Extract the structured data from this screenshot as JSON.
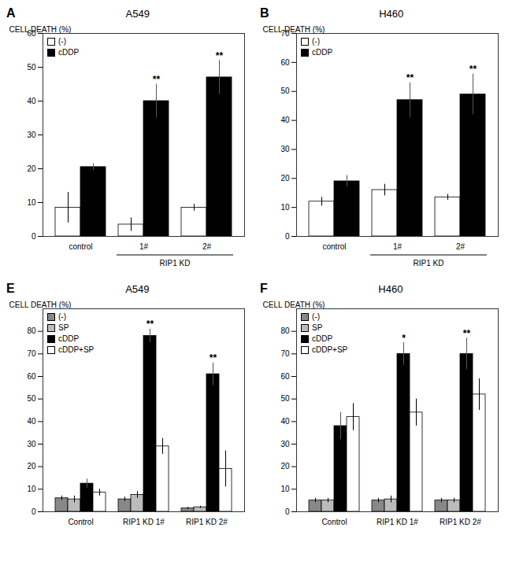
{
  "chart_data": [
    {
      "type": "bar",
      "title": "A549",
      "categories": [
        "control",
        "1#",
        "2#"
      ],
      "series": [
        {
          "name": "(-)",
          "color": "#ffffff",
          "values": [
            8.5,
            3.5,
            8.5
          ],
          "errors": [
            4.5,
            2.0,
            1.0
          ]
        },
        {
          "name": "cDDP",
          "color": "#000000",
          "values": [
            20.5,
            40.0,
            47.0
          ],
          "errors": [
            1.0,
            5.0,
            5.0
          ]
        }
      ],
      "ylabel": "CELL DEATH (%)",
      "ylim": [
        0,
        60
      ],
      "yticks": [
        0,
        10,
        20,
        30,
        40,
        50,
        60
      ],
      "legend": "upper left",
      "annotations": [
        {
          "text": "A"
        },
        {
          "text": "**",
          "category": "1#",
          "series": "cDDP"
        },
        {
          "text": "**",
          "category": "2#",
          "series": "cDDP"
        },
        {
          "text": "RIP1 KD",
          "categories": [
            "1#",
            "2#"
          ]
        }
      ]
    },
    {
      "type": "bar",
      "title": "H460",
      "categories": [
        "control",
        "1#",
        "2#"
      ],
      "series": [
        {
          "name": "(-)",
          "color": "#ffffff",
          "values": [
            12.0,
            16.0,
            13.5
          ],
          "errors": [
            1.5,
            2.0,
            1.0
          ]
        },
        {
          "name": "cDDP",
          "color": "#000000",
          "values": [
            19.0,
            47.0,
            49.0
          ],
          "errors": [
            2.0,
            6.0,
            7.0
          ]
        }
      ],
      "ylabel": "CELL DEATH (%)",
      "ylim": [
        0,
        70
      ],
      "yticks": [
        0,
        10,
        20,
        30,
        40,
        50,
        60,
        70
      ],
      "legend": "upper left",
      "annotations": [
        {
          "text": "B"
        },
        {
          "text": "**",
          "category": "1#",
          "series": "cDDP"
        },
        {
          "text": "**",
          "category": "2#",
          "series": "cDDP"
        },
        {
          "text": "RIP1 KD",
          "categories": [
            "1#",
            "2#"
          ]
        }
      ]
    },
    {
      "type": "bar",
      "title": "A549",
      "categories": [
        "Control",
        "RIP1 KD 1#",
        "RIP1 KD 2#"
      ],
      "series": [
        {
          "name": "(-)",
          "color": "#888888",
          "values": [
            6.0,
            5.5,
            1.5
          ],
          "errors": [
            1.0,
            1.0,
            0.5
          ]
        },
        {
          "name": "SP",
          "color": "#bbbbbb",
          "values": [
            5.5,
            7.5,
            2.0
          ],
          "errors": [
            1.5,
            1.5,
            0.5
          ]
        },
        {
          "name": "cDDP",
          "color": "#000000",
          "values": [
            12.5,
            78.0,
            61.0
          ],
          "errors": [
            2.0,
            3.0,
            5.0
          ]
        },
        {
          "name": "cDDP+SP",
          "color": "#ffffff",
          "values": [
            8.5,
            29.0,
            19.0
          ],
          "errors": [
            1.5,
            3.5,
            8.0
          ]
        }
      ],
      "ylabel": "CELL DEATH (%)",
      "ylim": [
        0,
        90
      ],
      "yticks": [
        0,
        10,
        20,
        30,
        40,
        50,
        60,
        70,
        80
      ],
      "legend": "upper left",
      "annotations": [
        {
          "text": "E"
        },
        {
          "text": "**",
          "category": "RIP1 KD 1#",
          "series": "cDDP"
        },
        {
          "text": "**",
          "category": "RIP1 KD 2#",
          "series": "cDDP"
        }
      ]
    },
    {
      "type": "bar",
      "title": "H460",
      "categories": [
        "Control",
        "RIP1 KD 1#",
        "RIP1 KD 2#"
      ],
      "series": [
        {
          "name": "(-)",
          "color": "#888888",
          "values": [
            5.0,
            5.0,
            5.0
          ],
          "errors": [
            1.0,
            1.0,
            1.0
          ]
        },
        {
          "name": "SP",
          "color": "#bbbbbb",
          "values": [
            5.0,
            5.5,
            5.0
          ],
          "errors": [
            1.0,
            1.5,
            1.0
          ]
        },
        {
          "name": "cDDP",
          "color": "#000000",
          "values": [
            38.0,
            70.0,
            70.0
          ],
          "errors": [
            6.0,
            5.0,
            7.0
          ]
        },
        {
          "name": "cDDP+SP",
          "color": "#ffffff",
          "values": [
            42.0,
            44.0,
            52.0
          ],
          "errors": [
            6.0,
            6.0,
            7.0
          ]
        }
      ],
      "ylabel": "CELL DEATH (%)",
      "ylim": [
        0,
        90
      ],
      "yticks": [
        0,
        10,
        20,
        30,
        40,
        50,
        60,
        70,
        80
      ],
      "legend": "upper left",
      "annotations": [
        {
          "text": "F"
        },
        {
          "text": "*",
          "category": "RIP1 KD 1#",
          "series": "cDDP"
        },
        {
          "text": "**",
          "category": "RIP1 KD 2#",
          "series": "cDDP"
        }
      ]
    }
  ]
}
